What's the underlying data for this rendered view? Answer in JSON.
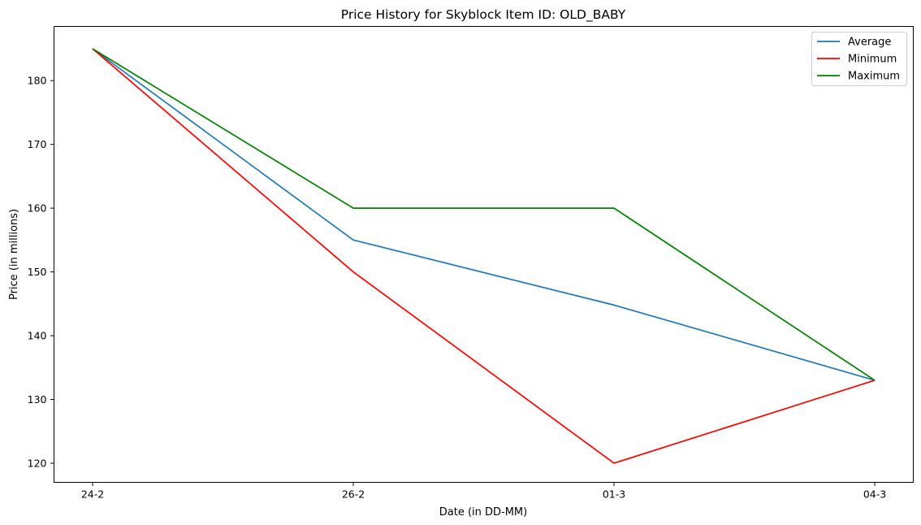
{
  "chart_data": {
    "type": "line",
    "title": "Price History for Skyblock Item ID: OLD_BABY",
    "xlabel": "Date (in DD-MM)",
    "ylabel": "Price (in millions)",
    "categories": [
      "24-2",
      "26-2",
      "01-3",
      "04-3"
    ],
    "ylim": [
      117,
      188.5
    ],
    "yticks": [
      120,
      130,
      140,
      150,
      160,
      170,
      180
    ],
    "grid": false,
    "legend_position": "top-right",
    "series": [
      {
        "name": "Average",
        "color": "#1f77b4",
        "values": [
          185,
          155,
          144.8,
          133
        ]
      },
      {
        "name": "Minimum",
        "color": "#ff0000",
        "values": [
          185,
          150,
          120,
          133
        ]
      },
      {
        "name": "Maximum",
        "color": "#008000",
        "values": [
          185,
          160,
          160,
          133
        ]
      }
    ]
  }
}
